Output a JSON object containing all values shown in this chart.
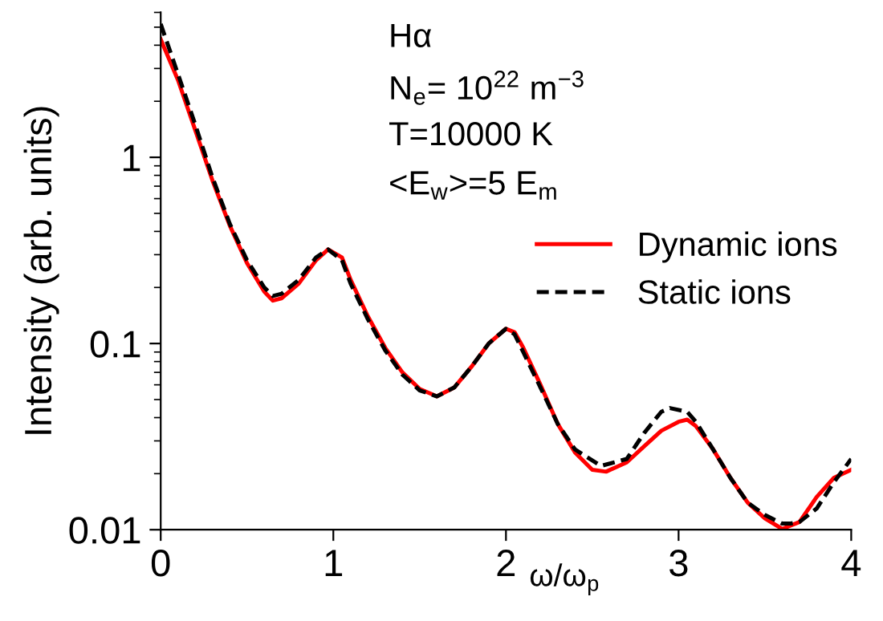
{
  "chart_data": {
    "type": "line",
    "xlabel": "ω/ω$_{p}$",
    "ylabel": "Intensity (arb. units)",
    "annotations": [
      "Hα",
      "N$_{e}$= 10$^{22}$ m$^{−3}$",
      "T=10000 K",
      "<E$_{w}$>=5 E$_{m}$"
    ],
    "xlim": [
      0,
      4
    ],
    "xticks": [
      0,
      1,
      2,
      3,
      4
    ],
    "ylim": [
      0.01,
      6
    ],
    "yticks": [
      0.01,
      0.1,
      1
    ],
    "log": "y",
    "grid": false,
    "legend": "right",
    "marker": "none",
    "series": [
      {
        "name": "Dynamic ions",
        "color": "#ff0000",
        "line_style": "solid",
        "x": [
          0,
          0.1,
          0.2,
          0.3,
          0.4,
          0.5,
          0.6,
          0.65,
          0.7,
          0.8,
          0.9,
          0.97,
          1.05,
          1.1,
          1.2,
          1.3,
          1.4,
          1.5,
          1.6,
          1.7,
          1.8,
          1.9,
          2.0,
          2.05,
          2.1,
          2.2,
          2.3,
          2.4,
          2.5,
          2.58,
          2.7,
          2.8,
          2.9,
          3.0,
          3.05,
          3.1,
          3.2,
          3.3,
          3.4,
          3.5,
          3.6,
          3.7,
          3.8,
          3.9,
          4.0
        ],
        "values": [
          4.3,
          2.6,
          1.4,
          0.75,
          0.43,
          0.27,
          0.19,
          0.17,
          0.175,
          0.21,
          0.28,
          0.32,
          0.29,
          0.22,
          0.14,
          0.095,
          0.07,
          0.057,
          0.052,
          0.058,
          0.075,
          0.1,
          0.12,
          0.115,
          0.095,
          0.06,
          0.037,
          0.026,
          0.021,
          0.0205,
          0.023,
          0.028,
          0.034,
          0.038,
          0.039,
          0.036,
          0.027,
          0.019,
          0.014,
          0.0115,
          0.0101,
          0.011,
          0.015,
          0.019,
          0.021
        ]
      },
      {
        "name": "Static ions",
        "color": "#000000",
        "line_style": "dashed",
        "x": [
          0,
          0.1,
          0.2,
          0.3,
          0.4,
          0.5,
          0.6,
          0.65,
          0.7,
          0.8,
          0.9,
          0.97,
          1.05,
          1.1,
          1.2,
          1.3,
          1.4,
          1.5,
          1.6,
          1.7,
          1.8,
          1.9,
          2.0,
          2.05,
          2.1,
          2.2,
          2.3,
          2.4,
          2.55,
          2.7,
          2.8,
          2.9,
          2.95,
          3.05,
          3.1,
          3.2,
          3.3,
          3.4,
          3.5,
          3.6,
          3.65,
          3.7,
          3.8,
          3.9,
          4.0
        ],
        "values": [
          5.2,
          2.8,
          1.5,
          0.78,
          0.44,
          0.28,
          0.2,
          0.18,
          0.185,
          0.22,
          0.29,
          0.32,
          0.28,
          0.21,
          0.135,
          0.092,
          0.068,
          0.056,
          0.052,
          0.058,
          0.075,
          0.1,
          0.12,
          0.112,
          0.09,
          0.058,
          0.037,
          0.027,
          0.022,
          0.024,
          0.033,
          0.043,
          0.045,
          0.043,
          0.038,
          0.027,
          0.019,
          0.014,
          0.012,
          0.0108,
          0.0108,
          0.011,
          0.013,
          0.018,
          0.024
        ]
      }
    ]
  }
}
